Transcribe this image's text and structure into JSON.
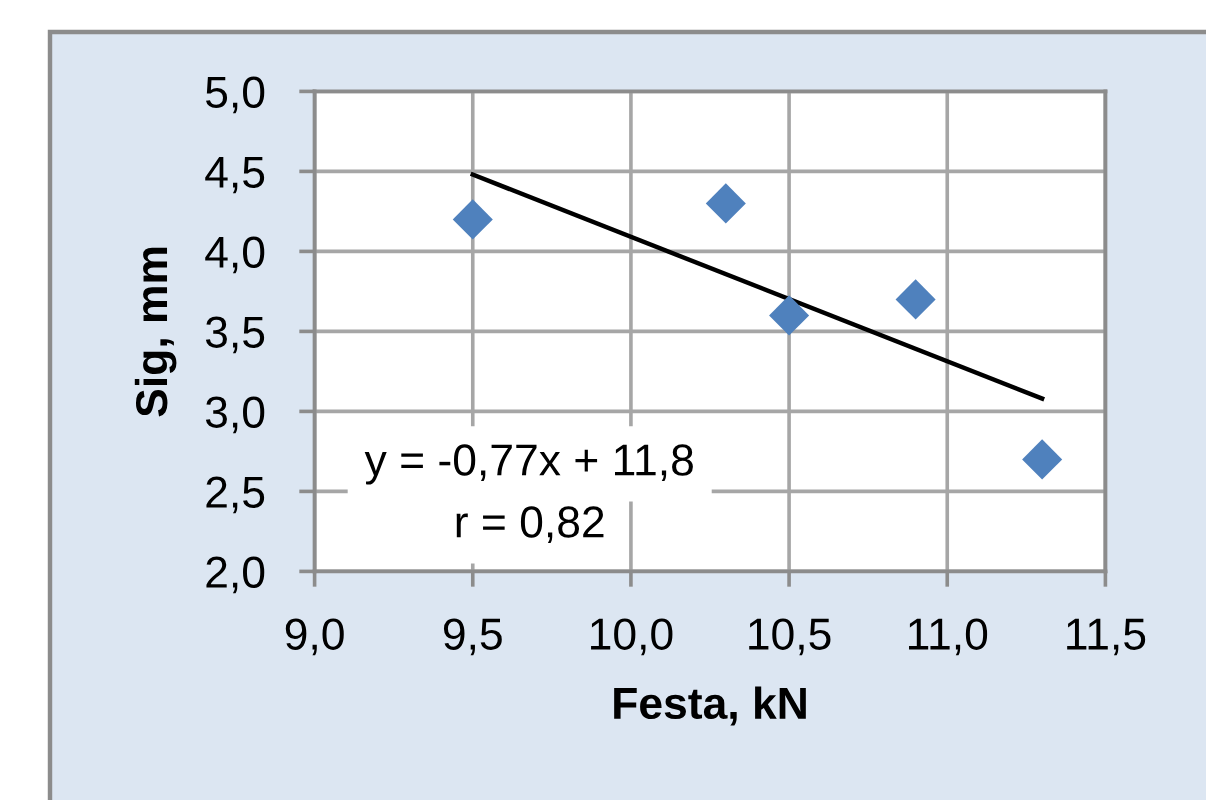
{
  "chart_data": {
    "type": "scatter",
    "xlabel": "Festa, kN",
    "ylabel": "Sig, mm",
    "series": [
      {
        "color": "#4f81bd",
        "marker": "diamond",
        "x": [
          9.5,
          10.3,
          10.5,
          10.9,
          11.3
        ],
        "values": [
          4.2,
          4.3,
          3.6,
          3.7,
          2.7
        ]
      },
      {
        "type": "line",
        "color": "#000000",
        "marker": "none",
        "line_style": "solid",
        "x": [
          9.5,
          11.3
        ],
        "values": [
          4.48,
          3.08
        ]
      }
    ],
    "xlim": [
      9.0,
      11.5
    ],
    "ylim": [
      2.0,
      5.0
    ],
    "xticks": [
      {
        "value": 9.0,
        "label": "9,0"
      },
      {
        "value": 9.5,
        "label": "9,5"
      },
      {
        "value": 10.0,
        "label": "10,0"
      },
      {
        "value": 10.5,
        "label": "10,5"
      },
      {
        "value": 11.0,
        "label": "11,0"
      },
      {
        "value": 11.5,
        "label": "11,5"
      }
    ],
    "yticks": [
      {
        "value": 2.0,
        "label": "2,0"
      },
      {
        "value": 2.5,
        "label": "2,5"
      },
      {
        "value": 3.0,
        "label": "3,0"
      },
      {
        "value": 3.5,
        "label": "3,5"
      },
      {
        "value": 4.0,
        "label": "4,0"
      },
      {
        "value": 4.5,
        "label": "4,5"
      },
      {
        "value": 5.0,
        "label": "5,0"
      }
    ],
    "grid": true,
    "annotations": [
      "y = -0,77x + 11,8",
      "r = 0,82"
    ]
  }
}
